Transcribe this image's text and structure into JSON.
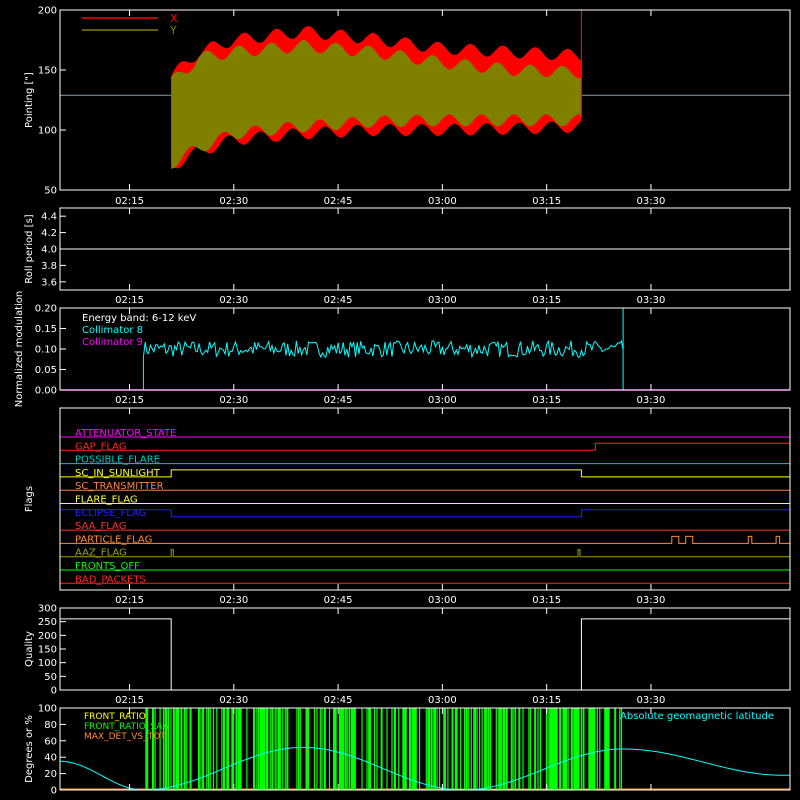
{
  "colors": {
    "background": "#000000",
    "axis": "#ffffff",
    "x_pointing": "#ff0000",
    "y_pointing": "#808000",
    "collimator8": "#00ffff",
    "collimator9": "#ff00ff",
    "front_ratio": "#ffff00",
    "front_ratio_b": "#00ff00",
    "max_det": "#ff8c32",
    "geomag": "#00ffff"
  },
  "time_axis": {
    "range_minutes": [
      125,
      230
    ],
    "tick_minutes": [
      135,
      150,
      165,
      180,
      195,
      210
    ],
    "tick_labels": [
      "02:15",
      "02:30",
      "02:45",
      "03:00",
      "03:15",
      "03:30"
    ]
  },
  "chart_data": [
    {
      "type": "area",
      "ylabel": "Pointing [\"]",
      "ylim": [
        50,
        200
      ],
      "y_ticks": [
        "50",
        "100",
        "150",
        "200"
      ],
      "legend": [
        {
          "label": "X",
          "color": "#ff0000"
        },
        {
          "label": "Y",
          "color": "#808000"
        }
      ],
      "legend_position": "top-left",
      "reference_level": 129,
      "series": [
        {
          "name": "X",
          "x_minutes": [
            141,
            145,
            150,
            160,
            170,
            180,
            190,
            200
          ],
          "upper": [
            145,
            165,
            175,
            182,
            176,
            168,
            165,
            162
          ],
          "lower": [
            70,
            82,
            92,
            97,
            100,
            100,
            101,
            103
          ]
        },
        {
          "name": "Y",
          "x_minutes": [
            141,
            145,
            150,
            160,
            170,
            180,
            190,
            200
          ],
          "upper": [
            140,
            160,
            165,
            170,
            165,
            156,
            150,
            148
          ],
          "lower": [
            72,
            85,
            97,
            103,
            107,
            108,
            108,
            108
          ]
        }
      ],
      "active_range_minutes": [
        141,
        200
      ]
    },
    {
      "type": "line",
      "ylabel": "Roll period [s]",
      "ylim": [
        3.5,
        4.5
      ],
      "y_ticks": [
        "3.6",
        "3.8",
        "4.0",
        "4.2",
        "4.4"
      ],
      "series": [
        {
          "name": "",
          "x_minutes": [
            125,
            230
          ],
          "y": [
            4.0,
            4.0
          ]
        }
      ]
    },
    {
      "type": "line",
      "ylabel": "Normalized modulation",
      "ylim": [
        0.0,
        0.2
      ],
      "y_ticks": [
        "0.00",
        "0.05",
        "0.10",
        "0.15",
        "0.20"
      ],
      "annotation": "Energy band: 6-12 keV",
      "legend": [
        {
          "label": "Collimator 8",
          "color": "#00ffff"
        },
        {
          "label": "Collimator 9",
          "color": "#ff00ff"
        }
      ],
      "legend_position": "top-left",
      "series": [
        {
          "name": "Collimator 8",
          "active_range_minutes": [
            137,
            206
          ],
          "mean": 0.1,
          "spread": 0.02,
          "spike": 0.2
        },
        {
          "name": "Collimator 9",
          "x_minutes": [
            125,
            230
          ],
          "y": [
            0.0,
            0.0
          ]
        }
      ]
    },
    {
      "type": "line",
      "ylabel": "Flags",
      "flags": [
        {
          "label": "ATTENUATOR_STATE",
          "color": "#ff00ff",
          "segments": []
        },
        {
          "label": "GAP_FLAG",
          "color": "#ff2020",
          "segments": [
            [
              202,
              230
            ]
          ]
        },
        {
          "label": "POSSIBLE_FLARE",
          "color": "#00c8c8",
          "segments": []
        },
        {
          "label": "SC_IN_SUNLIGHT",
          "color": "#ffff00",
          "segments": [
            [
              141,
              200
            ]
          ]
        },
        {
          "label": "SC_TRANSMITTER",
          "color": "#ff8040",
          "segments": []
        },
        {
          "label": "FLARE_FLAG",
          "color": "#ffff40",
          "segments": []
        },
        {
          "label": "ECLIPSE_FLAG",
          "color": "#2020ff",
          "segments": [
            [
              125,
              141
            ],
            [
              200,
              230
            ]
          ]
        },
        {
          "label": "SAA_FLAG",
          "color": "#ff3030",
          "segments": []
        },
        {
          "label": "PARTICLE_FLAG",
          "color": "#ff8c32",
          "segments": [
            [
              213,
              214
            ],
            [
              215,
              216
            ],
            [
              224,
              224.5
            ],
            [
              228,
              228.5
            ]
          ]
        },
        {
          "label": "AAZ_FLAG",
          "color": "#a0a000",
          "segments": [
            [
              141,
              141.3
            ],
            [
              199.5,
              199.8
            ]
          ]
        },
        {
          "label": "FRONTS_OFF",
          "color": "#00ff00",
          "segments": []
        },
        {
          "label": "BAD_PACKETS",
          "color": "#ff2020",
          "segments": []
        }
      ]
    },
    {
      "type": "line",
      "ylabel": "Quality",
      "ylim": [
        0,
        300
      ],
      "y_ticks": [
        "0",
        "50",
        "100",
        "150",
        "200",
        "250",
        "300"
      ],
      "series": [
        {
          "name": "",
          "x_minutes": [
            125,
            141,
            141,
            200,
            200,
            230
          ],
          "y": [
            260,
            260,
            0,
            0,
            260,
            260
          ]
        }
      ]
    },
    {
      "type": "line",
      "ylabel": "Degrees or %",
      "ylim": [
        0,
        100
      ],
      "y_ticks": [
        "0",
        "20",
        "40",
        "60",
        "80",
        "100"
      ],
      "legend": [
        {
          "label": "FRONT_RATIO",
          "color": "#ffff00"
        },
        {
          "label": "FRONT_RATIO_SAA",
          "color": "#00ff00"
        },
        {
          "label": "MAX_DET_VS_TOT",
          "color": "#ff8c32"
        },
        {
          "label": "Absolute geomagnetic latitude",
          "color": "#00ffff"
        }
      ],
      "geomag_latitude": {
        "x_minutes": [
          125,
          137,
          160,
          183,
          206,
          229
        ],
        "y": [
          35,
          0,
          52,
          0,
          50,
          18
        ]
      },
      "active_range_minutes": [
        137,
        206
      ]
    }
  ]
}
